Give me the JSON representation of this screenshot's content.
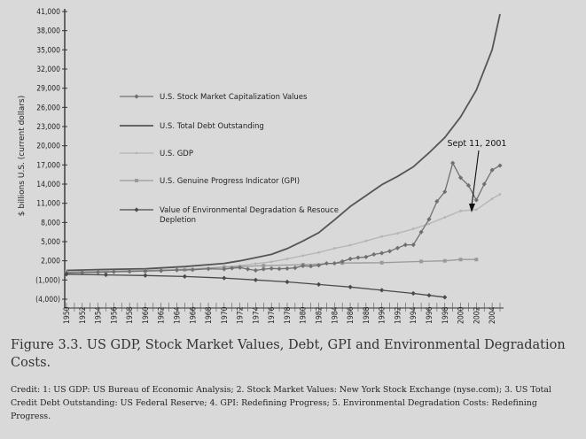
{
  "caption": {
    "title": "Figure 3.3. US GDP, Stock Market Values, Debt, GPI and Environmental Degradation Costs.",
    "credit": "Credit: 1: US GDP: US Bureau of Economic Analysis; 2. Stock Market Values: New York Stock Exchange (nyse.com); 3. US Total Credit Debt Outstanding: US Federal Reserve; 4. GPI: Redefining Progress; 5. Environmental Degradation Costs: Redefining Progress."
  },
  "chart_data": {
    "type": "line",
    "title": "",
    "xlabel": "",
    "ylabel": "$ billions U.S. (current dollars)",
    "ylim": [
      -4000,
      41000
    ],
    "xlim": [
      1950,
      2005
    ],
    "y_ticks": [
      "(4,000)",
      "(1,000)",
      "2,000",
      "5,000",
      "8,000",
      "11,000",
      "14,000",
      "17,000",
      "20,000",
      "23,000",
      "26,000",
      "29,000",
      "32,000",
      "35,000",
      "38,000",
      "41,000"
    ],
    "y_tick_values": [
      -4000,
      -1000,
      2000,
      5000,
      8000,
      11000,
      14000,
      17000,
      20000,
      23000,
      26000,
      29000,
      32000,
      35000,
      38000,
      41000
    ],
    "x_ticks": [
      "1950",
      "1952",
      "1954",
      "1956",
      "1958",
      "1960",
      "1962",
      "1964",
      "1966",
      "1968",
      "1970",
      "1972",
      "1974",
      "1976",
      "1978",
      "1980",
      "1982",
      "1984",
      "1986",
      "1988",
      "1990",
      "1992",
      "1994",
      "1996",
      "1998",
      "2000",
      "2002",
      "2004"
    ],
    "legend_position": "left",
    "grid": false,
    "annotation": {
      "text": "Sept 11, 2001",
      "x": 2001,
      "y": 11500
    },
    "series": [
      {
        "name": "U.S. Stock Market Capitalization Values",
        "color": "#707070",
        "style": "line-marker-diamond",
        "x": [
          1950,
          1952,
          1954,
          1956,
          1958,
          1960,
          1962,
          1964,
          1966,
          1968,
          1970,
          1971,
          1972,
          1973,
          1974,
          1975,
          1976,
          1977,
          1978,
          1979,
          1980,
          1981,
          1982,
          1983,
          1984,
          1985,
          1986,
          1987,
          1988,
          1989,
          1990,
          1991,
          1992,
          1993,
          1994,
          1995,
          1996,
          1997,
          1998,
          1999,
          2000,
          2001,
          2002,
          2003,
          2004,
          2005
        ],
        "y": [
          100,
          150,
          200,
          280,
          330,
          420,
          450,
          550,
          600,
          750,
          700,
          850,
          950,
          700,
          500,
          700,
          800,
          750,
          800,
          900,
          1200,
          1150,
          1300,
          1600,
          1600,
          1900,
          2300,
          2500,
          2600,
          3000,
          3200,
          3500,
          4000,
          4500,
          4500,
          6500,
          8500,
          11300,
          12800,
          17300,
          15000,
          13800,
          11500,
          14000,
          16200,
          16900
        ]
      },
      {
        "name": "U.S. Total Debt Outstanding",
        "color": "#555555",
        "style": "line",
        "x": [
          1950,
          1955,
          1960,
          1965,
          1970,
          1972,
          1974,
          1976,
          1978,
          1980,
          1982,
          1984,
          1986,
          1988,
          1990,
          1992,
          1994,
          1996,
          1998,
          2000,
          2002,
          2004,
          2005
        ],
        "y": [
          500,
          650,
          750,
          1100,
          1600,
          2000,
          2500,
          3000,
          3900,
          5100,
          6400,
          8400,
          10500,
          12200,
          13900,
          15200,
          16700,
          18900,
          21300,
          24500,
          28700,
          35000,
          40600
        ]
      },
      {
        "name": "U.S. GDP",
        "color": "#b4b4b4",
        "style": "line-marker-small",
        "x": [
          1950,
          1955,
          1960,
          1965,
          1970,
          1972,
          1974,
          1976,
          1978,
          1980,
          1982,
          1984,
          1986,
          1988,
          1990,
          1992,
          1994,
          1996,
          1998,
          2000,
          2002,
          2004,
          2005
        ],
        "y": [
          300,
          400,
          550,
          700,
          1040,
          1250,
          1550,
          1850,
          2300,
          2800,
          3300,
          3950,
          4450,
          5100,
          5800,
          6300,
          7000,
          7800,
          8800,
          9800,
          10000,
          11700,
          12400
        ]
      },
      {
        "name": "U.S. Genuine Progress Indicator (GPI)",
        "color": "#9a9a9a",
        "style": "line-marker-square",
        "x": [
          1950,
          1955,
          1960,
          1965,
          1970,
          1975,
          1980,
          1985,
          1990,
          1995,
          1998,
          2000,
          2002
        ],
        "y": [
          200,
          300,
          400,
          600,
          1000,
          1250,
          1400,
          1650,
          1700,
          1900,
          2000,
          2200,
          2200
        ]
      },
      {
        "name": "Value of Environmental Degradation & Resouce Depletion",
        "color": "#4a4a4a",
        "style": "line-marker-diamond",
        "x": [
          1950,
          1955,
          1960,
          1965,
          1970,
          1974,
          1978,
          1982,
          1986,
          1990,
          1994,
          1996,
          1998
        ],
        "y": [
          -100,
          -200,
          -300,
          -450,
          -700,
          -1000,
          -1300,
          -1700,
          -2100,
          -2600,
          -3100,
          -3400,
          -3700
        ]
      }
    ]
  }
}
